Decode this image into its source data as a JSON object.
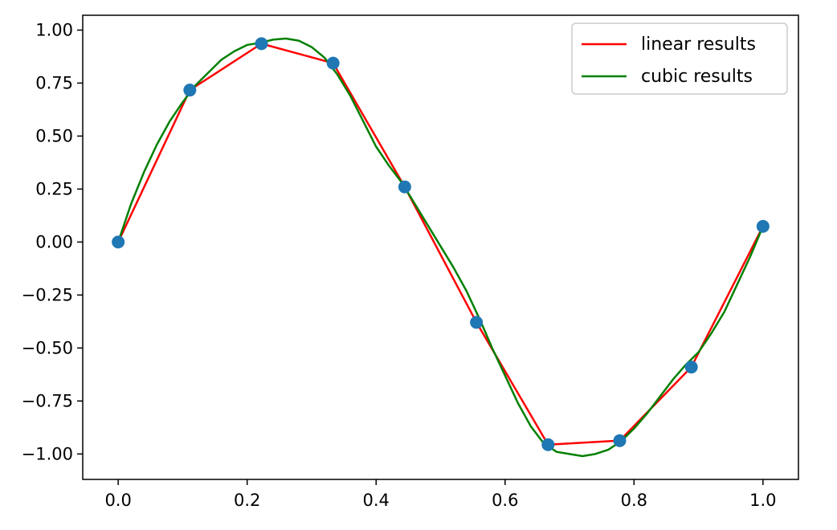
{
  "chart_data": {
    "type": "line",
    "title": "",
    "xlabel": "",
    "ylabel": "",
    "xlim": [
      -0.055,
      1.055
    ],
    "ylim": [
      -1.12,
      1.07
    ],
    "grid": false,
    "legend_placement": "top-right",
    "xticks": [
      "0.0",
      "0.2",
      "0.4",
      "0.6",
      "0.8",
      "1.0"
    ],
    "xtick_values": [
      0.0,
      0.2,
      0.4,
      0.6,
      0.8,
      1.0
    ],
    "yticks": [
      "1.00",
      "0.75",
      "0.50",
      "0.25",
      "0.00",
      "−0.25",
      "−0.50",
      "−0.75",
      "−1.00"
    ],
    "ytick_values": [
      1.0,
      0.75,
      0.5,
      0.25,
      0.0,
      -0.25,
      -0.5,
      -0.75,
      -1.0
    ],
    "points": {
      "color": "#1f77b4",
      "x": [
        0.0,
        0.1111,
        0.2222,
        0.3333,
        0.4444,
        0.5556,
        0.6667,
        0.7778,
        0.8889,
        1.0
      ],
      "y": [
        0.0,
        0.717,
        0.936,
        0.844,
        0.26,
        -0.379,
        -0.956,
        -0.937,
        -0.59,
        0.074
      ]
    },
    "series": [
      {
        "name": "linear results",
        "color": "#ff0000",
        "x": [
          0.0,
          0.1111,
          0.2222,
          0.3333,
          0.4444,
          0.5556,
          0.6667,
          0.7778,
          0.8889,
          1.0
        ],
        "y": [
          0.0,
          0.717,
          0.936,
          0.844,
          0.26,
          -0.379,
          -0.956,
          -0.937,
          -0.59,
          0.074
        ]
      },
      {
        "name": "cubic results",
        "color": "#008000",
        "x": [
          0.0,
          0.02,
          0.04,
          0.06,
          0.08,
          0.1,
          0.12,
          0.14,
          0.16,
          0.18,
          0.2,
          0.22,
          0.24,
          0.26,
          0.28,
          0.3,
          0.32,
          0.34,
          0.36,
          0.38,
          0.4,
          0.42,
          0.44,
          0.46,
          0.48,
          0.5,
          0.52,
          0.54,
          0.56,
          0.58,
          0.6,
          0.62,
          0.64,
          0.66,
          0.68,
          0.7,
          0.72,
          0.74,
          0.76,
          0.78,
          0.8,
          0.82,
          0.84,
          0.86,
          0.88,
          0.9,
          0.92,
          0.94,
          0.96,
          0.98,
          1.0
        ],
        "y": [
          0.0,
          0.18,
          0.33,
          0.46,
          0.57,
          0.66,
          0.74,
          0.8,
          0.86,
          0.9,
          0.93,
          0.94,
          0.955,
          0.96,
          0.95,
          0.92,
          0.87,
          0.79,
          0.69,
          0.57,
          0.45,
          0.36,
          0.28,
          0.18,
          0.08,
          -0.02,
          -0.12,
          -0.23,
          -0.36,
          -0.5,
          -0.63,
          -0.76,
          -0.87,
          -0.95,
          -0.99,
          -1.0,
          -1.01,
          -1.0,
          -0.98,
          -0.94,
          -0.88,
          -0.81,
          -0.73,
          -0.65,
          -0.58,
          -0.52,
          -0.43,
          -0.33,
          -0.2,
          -0.07,
          0.074
        ]
      }
    ]
  }
}
